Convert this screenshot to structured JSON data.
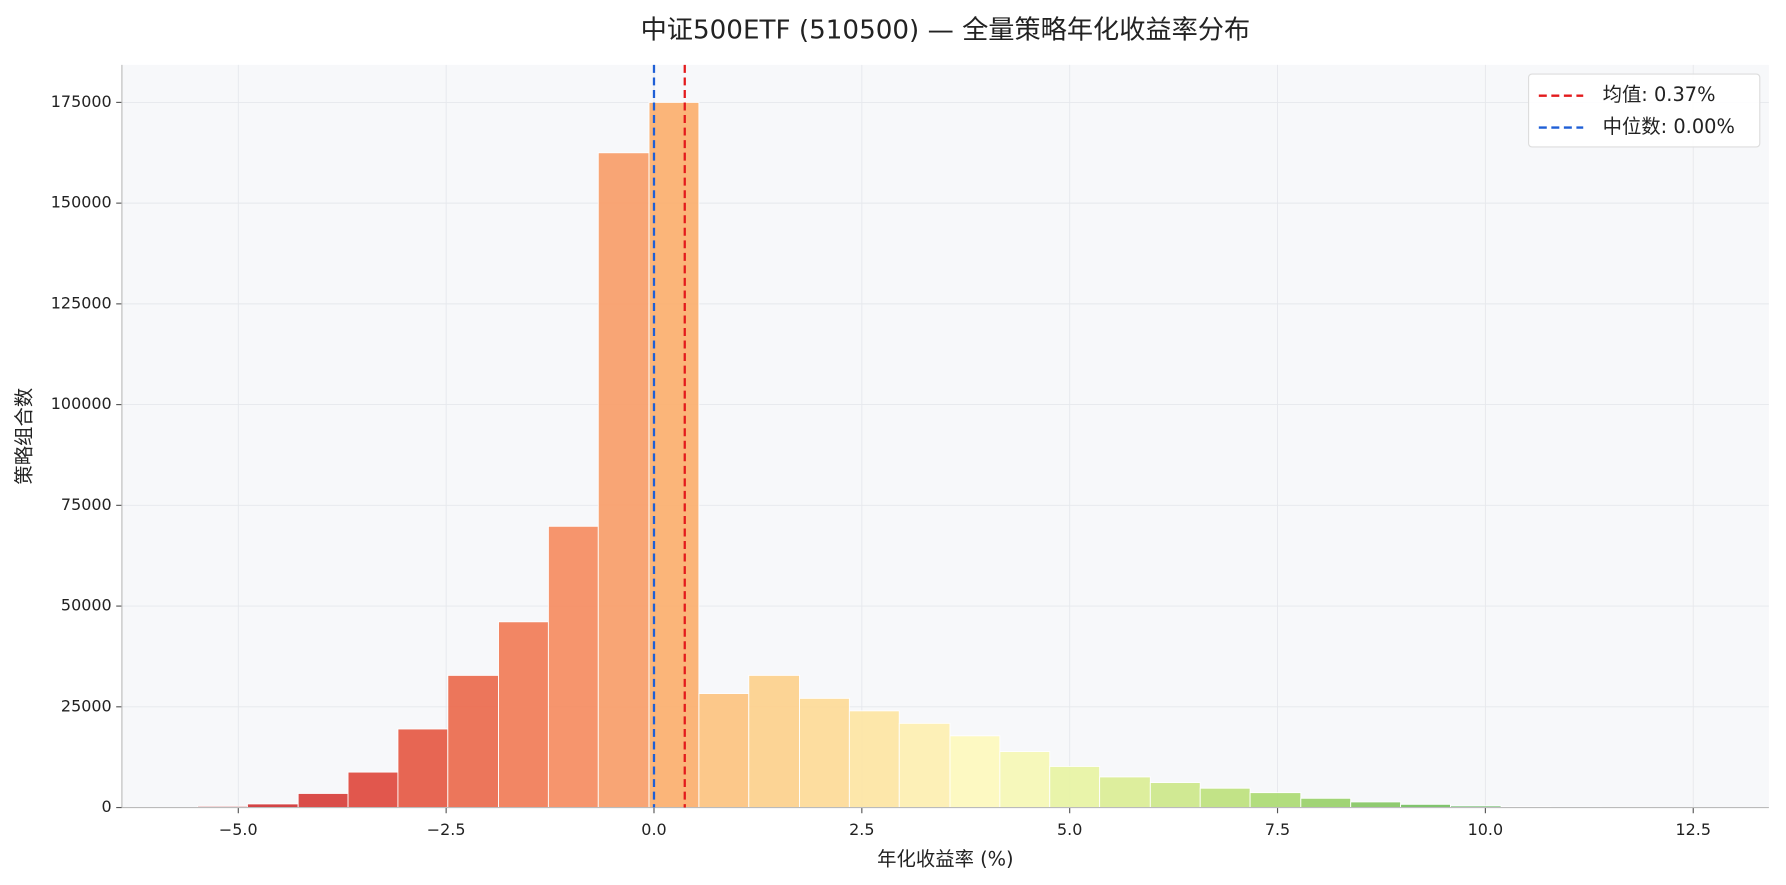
{
  "chart_data": {
    "type": "histogram",
    "title": "中证500ETF (510500) — 全量策略年化收益率分布",
    "x_label": "年化收益率 (%)",
    "y_label": "策略组合数",
    "bins": [
      -5.49,
      -4.89,
      -4.28,
      -3.68,
      -3.08,
      -2.48,
      -1.87,
      -1.27,
      -0.67,
      -0.06,
      0.54,
      1.14,
      1.75,
      2.35,
      2.95,
      3.56,
      4.16,
      4.76,
      5.36,
      5.97,
      6.57,
      7.17,
      7.78,
      8.38,
      8.98,
      9.58,
      10.19,
      10.79,
      11.39,
      12.0,
      12.6
    ],
    "counts": [
      300,
      900,
      3500,
      8800,
      19500,
      32800,
      46100,
      69800,
      162500,
      175000,
      28300,
      32800,
      27100,
      24000,
      20900,
      17800,
      13900,
      10200,
      7600,
      6200,
      4800,
      3700,
      2300,
      1400,
      800,
      400,
      200,
      100,
      50,
      20
    ],
    "colors": [
      "#c0272d",
      "#d03536",
      "#d83f3b",
      "#e04a3f",
      "#e65a45",
      "#ec6b4e",
      "#f27d58",
      "#f68d62",
      "#f99e6a",
      "#fcb06f",
      "#fdc581",
      "#fdd18d",
      "#fedb98",
      "#fee6a4",
      "#fef0b2",
      "#fefabe",
      "#f6f9b6",
      "#e8f4a4",
      "#dbee96",
      "#cde88b",
      "#bee27e",
      "#addb74",
      "#9ad16b",
      "#88c865",
      "#76c062",
      "#63b75d",
      "#50ad57",
      "#3da351",
      "#2d984b",
      "#1e8e45"
    ],
    "lines": [
      {
        "label": "均值: 0.37%",
        "value": 0.37,
        "color": "#e31a1c"
      },
      {
        "label": "中位数: 0.00%",
        "value": 0.0,
        "color": "#1f5fd6"
      }
    ],
    "xlim": [
      -6.4,
      13.41
    ],
    "ylim": [
      0,
      184300
    ],
    "xticks": [
      {
        "value": -5,
        "label": "−5.0"
      },
      {
        "value": -2.5,
        "label": "−2.5"
      },
      {
        "value": 0,
        "label": "0.0"
      },
      {
        "value": 2.5,
        "label": "2.5"
      },
      {
        "value": 5,
        "label": "5.0"
      },
      {
        "value": 7.5,
        "label": "7.5"
      },
      {
        "value": 10,
        "label": "10.0"
      },
      {
        "value": 12.5,
        "label": "12.5"
      }
    ],
    "yticks": [
      0,
      25000,
      50000,
      75000,
      100000,
      125000,
      150000,
      175000
    ],
    "grid": true,
    "legend": "upper right"
  }
}
